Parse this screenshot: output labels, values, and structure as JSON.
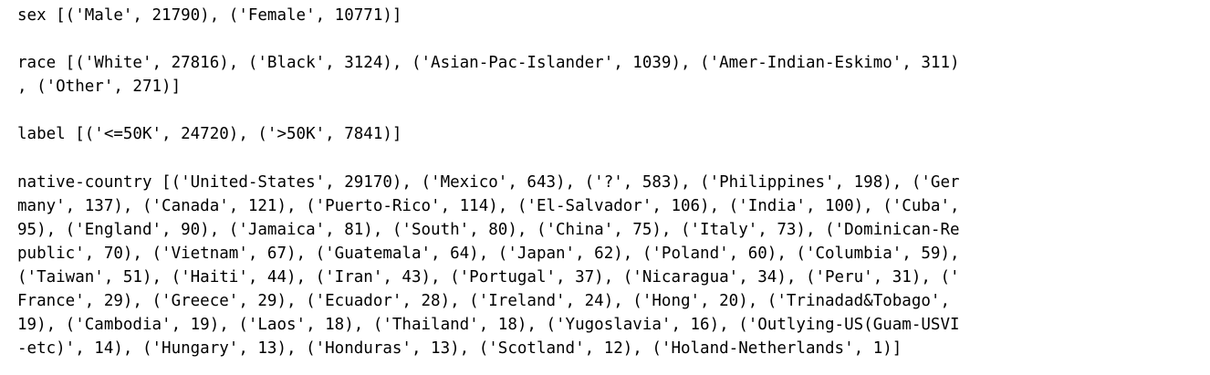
{
  "output": {
    "sex": {
      "lines": [
        "sex [('Male', 21790), ('Female', 10771)]"
      ]
    },
    "race": {
      "lines": [
        "race [('White', 27816), ('Black', 3124), ('Asian-Pac-Islander', 1039), ('Amer-Indian-Eskimo', 311)",
        ", ('Other', 271)]"
      ]
    },
    "label": {
      "lines": [
        "label [('<=50K', 24720), ('>50K', 7841)]"
      ]
    },
    "native_country": {
      "lines": [
        "native-country [('United-States', 29170), ('Mexico', 643), ('?', 583), ('Philippines', 198), ('Ger",
        "many', 137), ('Canada', 121), ('Puerto-Rico', 114), ('El-Salvador', 106), ('India', 100), ('Cuba',",
        "95), ('England', 90), ('Jamaica', 81), ('South', 80), ('China', 75), ('Italy', 73), ('Dominican-Re",
        "public', 70), ('Vietnam', 67), ('Guatemala', 64), ('Japan', 62), ('Poland', 60), ('Columbia', 59),",
        "('Taiwan', 51), ('Haiti', 44), ('Iran', 43), ('Portugal', 37), ('Nicaragua', 34), ('Peru', 31), ('",
        "France', 29), ('Greece', 29), ('Ecuador', 28), ('Ireland', 24), ('Hong', 20), ('Trinadad&Tobago',",
        "19), ('Cambodia', 19), ('Laos', 18), ('Thailand', 18), ('Yugoslavia', 16), ('Outlying-US(Guam-USVI",
        "-etc)', 14), ('Hungary', 13), ('Honduras', 13), ('Scotland', 12), ('Holand-Netherlands', 1)]"
      ]
    }
  }
}
